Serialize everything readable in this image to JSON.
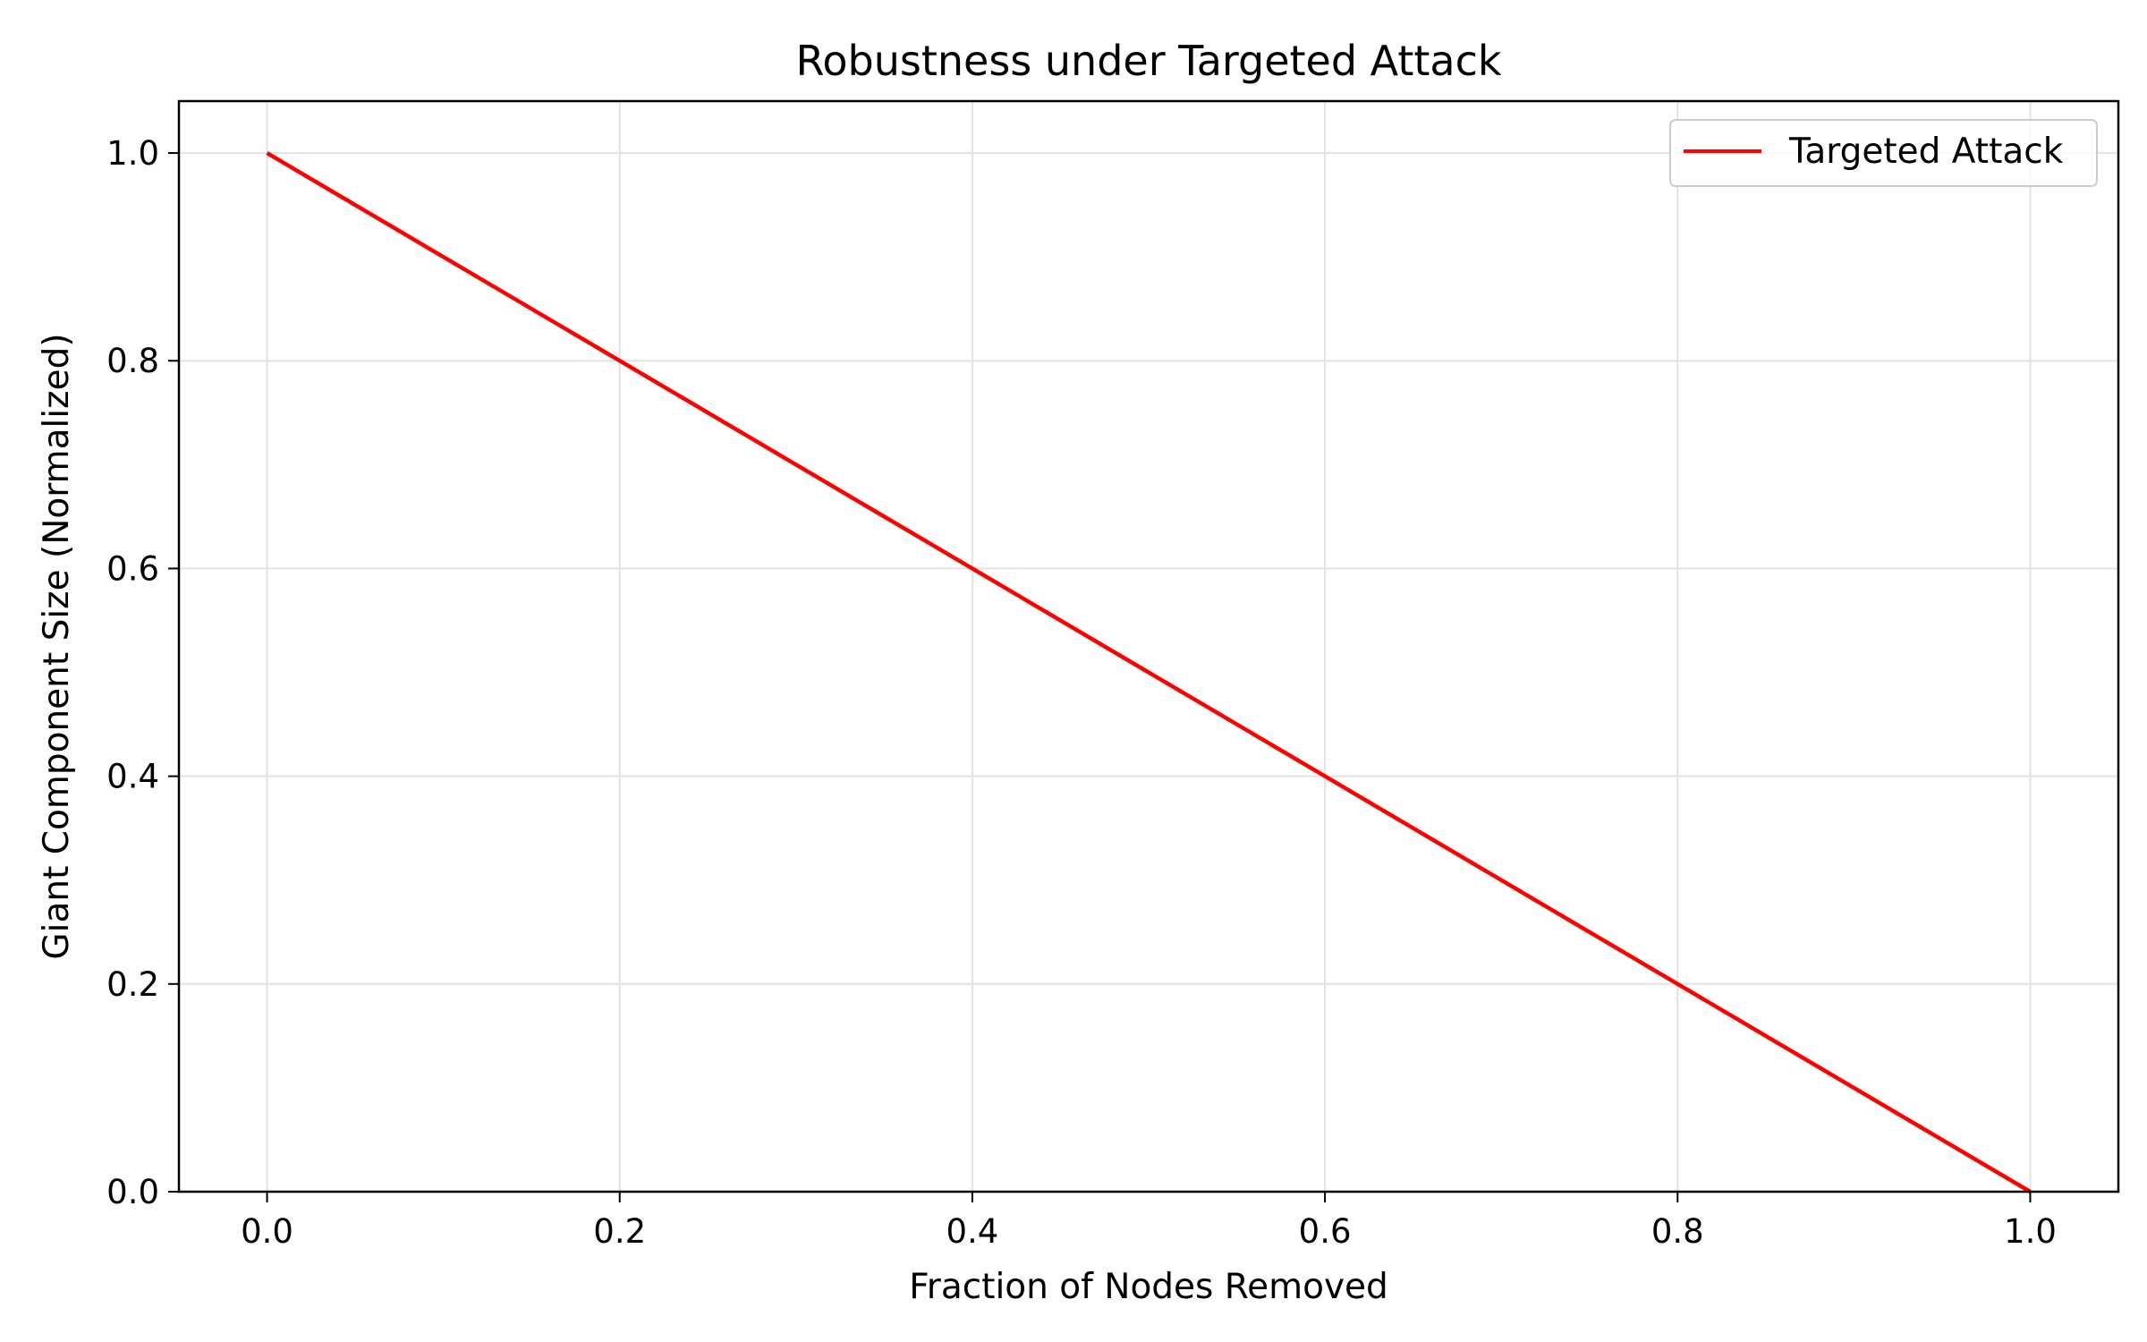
{
  "chart_data": {
    "type": "line",
    "title": "Robustness under Targeted Attack",
    "xlabel": "Fraction of Nodes Removed",
    "ylabel": "Giant Component Size (Normalized)",
    "xlim": [
      -0.05,
      1.05
    ],
    "ylim": [
      0.0,
      1.05
    ],
    "x_ticks": [
      0.0,
      0.2,
      0.4,
      0.6,
      0.8,
      1.0
    ],
    "x_tick_labels": [
      "0.0",
      "0.2",
      "0.4",
      "0.6",
      "0.8",
      "1.0"
    ],
    "y_ticks": [
      0.0,
      0.2,
      0.4,
      0.6,
      0.8,
      1.0
    ],
    "y_tick_labels": [
      "0.0",
      "0.2",
      "0.4",
      "0.6",
      "0.8",
      "1.0"
    ],
    "grid": true,
    "legend_position": "top-right",
    "series": [
      {
        "name": "Targeted Attack",
        "color": "#ff0000",
        "x": [
          0.0,
          0.1,
          0.2,
          0.3,
          0.4,
          0.5,
          0.6,
          0.7,
          0.8,
          0.9,
          1.0
        ],
        "y": [
          1.0,
          0.9,
          0.8,
          0.7,
          0.6,
          0.5,
          0.4,
          0.3,
          0.2,
          0.1,
          0.0
        ]
      }
    ]
  }
}
